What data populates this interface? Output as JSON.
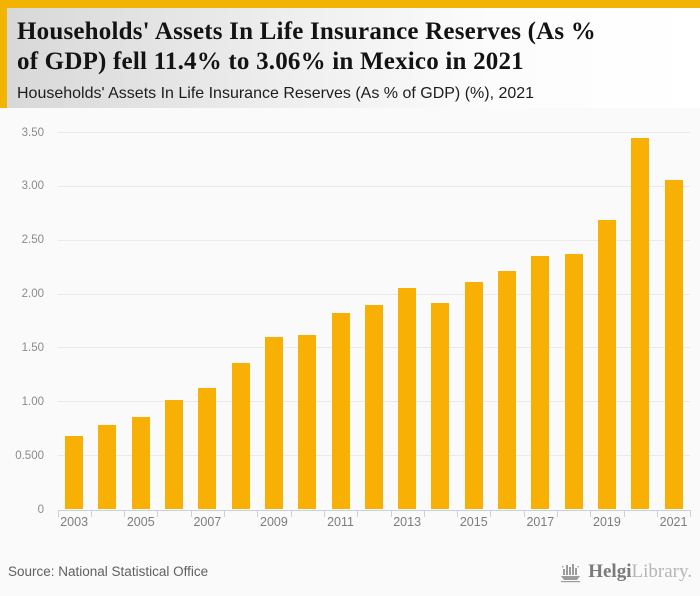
{
  "header": {
    "title_line1": "Households' Assets In Life Insurance Reserves (As %",
    "title_line2": "of GDP) fell 11.4% to 3.06% in Mexico in 2021",
    "subtitle": "Households' Assets In Life Insurance Reserves (As % of GDP) (%), 2021"
  },
  "chart_data": {
    "type": "bar",
    "title": "Households' Assets In Life Insurance Reserves (As % of GDP) (%), 2021",
    "categories": [
      "2003",
      "2004",
      "2005",
      "2006",
      "2007",
      "2008",
      "2009",
      "2010",
      "2011",
      "2012",
      "2013",
      "2014",
      "2015",
      "2016",
      "2017",
      "2018",
      "2019",
      "2020",
      "2021"
    ],
    "values": [
      0.68,
      0.78,
      0.86,
      1.02,
      1.13,
      1.36,
      1.6,
      1.62,
      1.82,
      1.9,
      2.06,
      1.92,
      2.11,
      2.21,
      2.35,
      2.37,
      2.69,
      3.45,
      3.06
    ],
    "x_tick_labels": [
      "2003",
      "2005",
      "2007",
      "2009",
      "2011",
      "2013",
      "2015",
      "2017",
      "2019",
      "2021"
    ],
    "y_ticks": [
      {
        "value": 3.5,
        "label": "3.50"
      },
      {
        "value": 3.0,
        "label": "3.00"
      },
      {
        "value": 2.5,
        "label": "2.50"
      },
      {
        "value": 2.0,
        "label": "2.00"
      },
      {
        "value": 1.5,
        "label": "1.50"
      },
      {
        "value": 1.0,
        "label": "1.00"
      },
      {
        "value": 0.5,
        "label": "0.500"
      },
      {
        "value": 0,
        "label": "0"
      }
    ],
    "ylim": [
      0,
      3.5
    ],
    "xlabel": "",
    "ylabel": "",
    "grid": true,
    "legend": false,
    "bar_color": "#F9B004",
    "accent_strip_color": "#F2B400",
    "gridline_color": "#EAEAEA",
    "axis_color": "#C7D1E4"
  },
  "footer": {
    "source": "Source: National Statistical Office",
    "logo_primary": "Helgi",
    "logo_secondary": "Library."
  }
}
